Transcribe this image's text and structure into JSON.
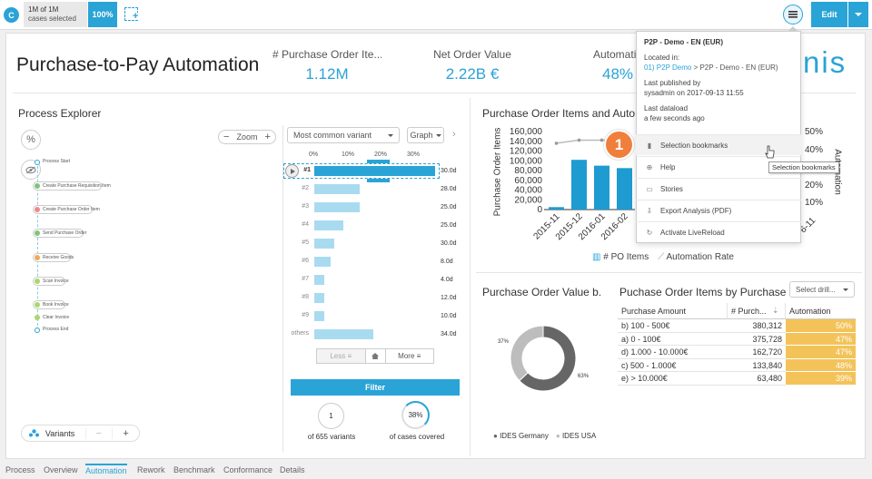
{
  "topbar": {
    "cases_count": "1M of 1M",
    "cases_label": "cases selected",
    "pct": "100%",
    "edit_label": "Edit"
  },
  "header": {
    "title": "Purchase-to-Pay Automation",
    "logo_text": "nis"
  },
  "kpis": [
    {
      "label": "# Purchase Order Ite...",
      "value": "1.12M"
    },
    {
      "label": "Net Order Value",
      "value": "2.22B €"
    },
    {
      "label": "Automation",
      "value": "48%"
    }
  ],
  "process_explorer": {
    "title": "Process Explorer",
    "zoom_label": "Zoom",
    "variant_select": "Most common variant",
    "graph_select": "Graph",
    "axis_ticks": [
      "0%",
      "10%",
      "20%",
      "30%"
    ],
    "activities": [
      "Process Start",
      "Create Purchase Requisition Item",
      "Create Purchase Order Item",
      "Send Purchase Order",
      "Receive Goods",
      "Scan Invoice",
      "Book Invoice",
      "Clear Invoice",
      "Process End"
    ],
    "variants": [
      {
        "rank": "#1",
        "pct": 37,
        "dur": "30.0d"
      },
      {
        "rank": "#2",
        "pct": 14,
        "dur": "28.0d"
      },
      {
        "rank": "#3",
        "pct": 14,
        "dur": "25.0d"
      },
      {
        "rank": "#4",
        "pct": 9,
        "dur": "25.0d"
      },
      {
        "rank": "#5",
        "pct": 6,
        "dur": "30.0d"
      },
      {
        "rank": "#6",
        "pct": 5,
        "dur": "8.0d"
      },
      {
        "rank": "#7",
        "pct": 3,
        "dur": "4.0d"
      },
      {
        "rank": "#8",
        "pct": 3,
        "dur": "12.0d"
      },
      {
        "rank": "#9",
        "pct": 3,
        "dur": "10.0d"
      },
      {
        "rank": "others",
        "pct": 18,
        "dur": "34.0d"
      }
    ],
    "less_label": "Less",
    "more_label": "More",
    "filter_label": "Filter",
    "variant_count": "1",
    "variant_count_label": "of 655 variants",
    "cases_pct": "38%",
    "cases_pct_label": "of cases covered",
    "variants_label": "Variants"
  },
  "chart_data": [
    {
      "type": "bar",
      "title": "Purchase Order Items and Automa",
      "ylabel": "Purchase Order Items",
      "y2label": "Automation",
      "categories": [
        "2015-11",
        "2015-12",
        "2016-01",
        "2016-02"
      ],
      "series": [
        {
          "name": "# PO Items",
          "values": [
            5000,
            102000,
            90000,
            85000
          ]
        },
        {
          "name": "Automation Rate",
          "values": [
            46,
            48,
            48,
            48
          ]
        }
      ],
      "y_ticks": [
        "160,000",
        "140,000",
        "120,000",
        "100,000",
        "80,000",
        "60,000",
        "40,000",
        "20,000",
        "0"
      ],
      "y2_ticks": [
        "50%",
        "40%",
        "30%",
        "20%",
        "10%"
      ],
      "ylim": [
        0,
        160000
      ]
    },
    {
      "type": "pie",
      "title": "Purchase Order Value b...",
      "slices": [
        {
          "name": "IDES Germany",
          "value": 63,
          "label": "63%"
        },
        {
          "name": "IDES USA",
          "value": 37,
          "label": "37%"
        }
      ]
    }
  ],
  "table": {
    "title": "Puchase Order Items by Purchase Am",
    "drill_label": "Select drill...",
    "headers": [
      "Purchase Amount",
      "# Purch...",
      "Automation"
    ],
    "rows": [
      [
        "b) 100 - 500€",
        "380,312",
        "50%"
      ],
      [
        "a) 0 - 100€",
        "375,728",
        "47%"
      ],
      [
        "d) 1.000 - 10.000€",
        "162,720",
        "47%"
      ],
      [
        "c) 500 - 1.000€",
        "133,840",
        "48%"
      ],
      [
        "e) > 10.000€",
        "63,480",
        "39%"
      ]
    ]
  },
  "popup": {
    "title": "P2P - Demo - EN (EUR)",
    "located_label": "Located in:",
    "located_link": "01) P2P Demo",
    "located_sep": ">",
    "located_value": "P2P - Demo - EN (EUR)",
    "published_label": "Last published by",
    "published_value": "sysadmin on 2017-09-13 11:55",
    "dataload_label": "Last dataload",
    "dataload_value": "a few seconds ago",
    "items": [
      {
        "icon": "bookmark-icon",
        "label": "Selection bookmarks"
      },
      {
        "icon": "help-icon",
        "label": "Help"
      },
      {
        "icon": "stories-icon",
        "label": "Stories"
      },
      {
        "icon": "export-icon",
        "label": "Export Analysis (PDF)"
      },
      {
        "icon": "refresh-icon",
        "label": "Activate LiveReload"
      }
    ],
    "tooltip": "Selection bookmarks",
    "step_badge": "1"
  },
  "tabs": [
    "Process",
    "Overview",
    "Automation",
    "Rework",
    "Benchmark",
    "Conformance",
    "Details"
  ],
  "colors": {
    "accent": "#2aa3d6",
    "badge": "#f07f3c",
    "gold": "#f3c35a"
  }
}
